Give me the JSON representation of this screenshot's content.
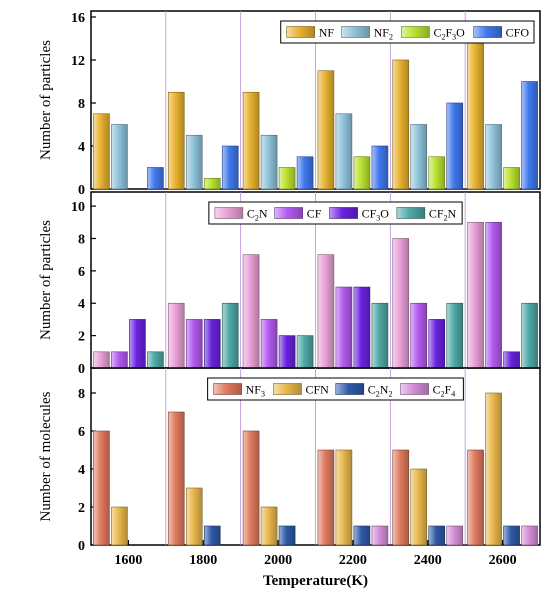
{
  "chart_data": [
    {
      "type": "bar",
      "ylabel": "Number of particles",
      "ylim": [
        0,
        16
      ],
      "yticks": [
        0,
        4,
        8,
        12,
        16
      ],
      "categories": [
        "1600",
        "1800",
        "2000",
        "2200",
        "2400",
        "2600"
      ],
      "legend_position": "top-right",
      "series": [
        {
          "name": "NF",
          "sub": "",
          "color": "#E8B230",
          "values": [
            7,
            9,
            9,
            11,
            12,
            14
          ]
        },
        {
          "name": "NF",
          "sub": "2",
          "color": "#8FC3DA",
          "values": [
            6,
            5,
            5,
            7,
            6,
            6
          ]
        },
        {
          "name": "C",
          "sub": "2",
          "tail": "F",
          "sub2": "3",
          "tail2": "O",
          "color": "#B8E22E",
          "values": [
            0,
            1,
            2,
            3,
            3,
            2
          ]
        },
        {
          "name": "CFO",
          "sub": "",
          "color": "#3F78EE",
          "values": [
            2,
            4,
            3,
            4,
            8,
            10
          ]
        }
      ]
    },
    {
      "type": "bar",
      "ylabel": "Number of particles",
      "ylim": [
        0,
        10.5
      ],
      "yticks": [
        0,
        2,
        4,
        6,
        8,
        10
      ],
      "categories": [
        "1600",
        "1800",
        "2000",
        "2200",
        "2400",
        "2600"
      ],
      "legend_position": "top",
      "series": [
        {
          "name": "C",
          "sub": "2",
          "tail": "N",
          "color": "#E8A0D6",
          "values": [
            1,
            4,
            7,
            7,
            8,
            9
          ]
        },
        {
          "name": "CF",
          "sub": "",
          "color": "#B25BEF",
          "values": [
            1,
            3,
            3,
            5,
            4,
            9
          ]
        },
        {
          "name": "CF",
          "sub": "3",
          "tail": "O",
          "color": "#6A22E0",
          "values": [
            3,
            3,
            2,
            5,
            3,
            1
          ]
        },
        {
          "name": "CF",
          "sub": "2",
          "tail": "N",
          "color": "#4FA8A6",
          "values": [
            1,
            4,
            2,
            4,
            4,
            4
          ]
        }
      ]
    },
    {
      "type": "bar",
      "ylabel": "Number of molecules",
      "xlabel": "Temperature(K)",
      "ylim": [
        0,
        9
      ],
      "yticks": [
        0,
        2,
        4,
        6,
        8
      ],
      "categories": [
        "1600",
        "1800",
        "2000",
        "2200",
        "2400",
        "2600"
      ],
      "legend_position": "top",
      "series": [
        {
          "name": "NF",
          "sub": "3",
          "color": "#E07A5F",
          "values": [
            6,
            7,
            6,
            5,
            5,
            5
          ]
        },
        {
          "name": "CFN",
          "sub": "",
          "color": "#E8B84C",
          "values": [
            2,
            3,
            2,
            5,
            4,
            8
          ]
        },
        {
          "name": "C",
          "sub": "2",
          "tail": "N",
          "sub2": "2",
          "color": "#2E5AA8",
          "values": [
            0,
            1,
            1,
            1,
            1,
            1
          ]
        },
        {
          "name": "C",
          "sub": "2",
          "tail": "F",
          "sub2": "4",
          "color": "#D58ED8",
          "values": [
            0,
            0,
            0,
            1,
            1,
            1
          ]
        }
      ]
    }
  ]
}
